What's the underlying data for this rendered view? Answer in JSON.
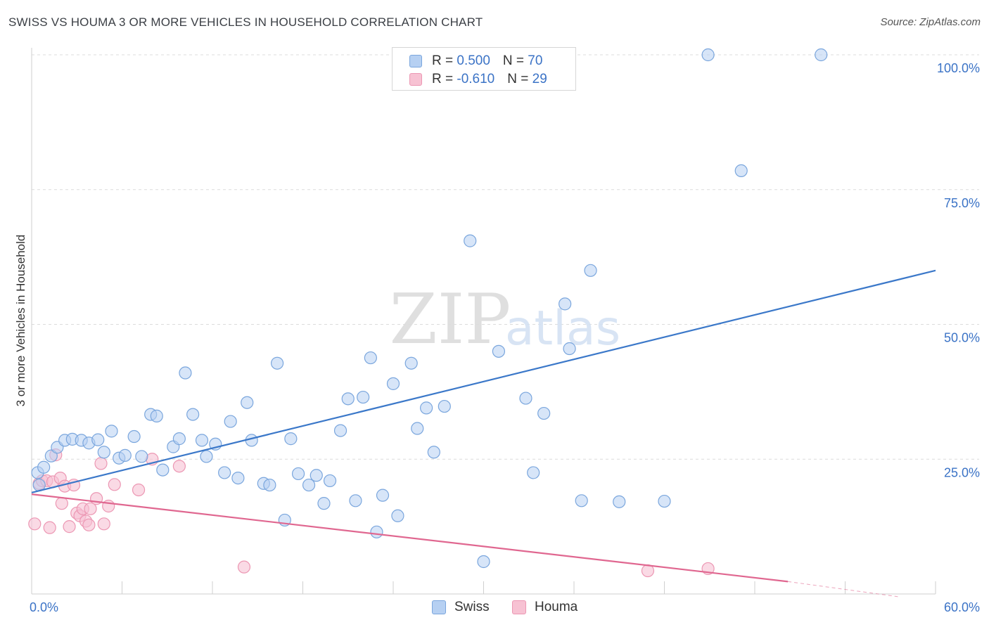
{
  "title": "SWISS VS HOUMA 3 OR MORE VEHICLES IN HOUSEHOLD CORRELATION CHART",
  "source": "Source: ZipAtlas.com",
  "watermark": {
    "zip": "ZIP",
    "atlas": "atlas"
  },
  "colors": {
    "swiss_fill": "#b6d0f2",
    "swiss_stroke": "#7aa6dd",
    "swiss_line": "#3b78c9",
    "houma_fill": "#f7c2d3",
    "houma_stroke": "#ec97b3",
    "houma_line": "#e06790",
    "axis_label": "#3b73c6",
    "grid": "#dcdcdc"
  },
  "legend": {
    "swiss": {
      "r_label": "R = ",
      "r_value": "0.500",
      "n_label": "N = ",
      "n_value": "70"
    },
    "houma": {
      "r_label": "R = ",
      "r_value": "-0.610",
      "n_label": "N = ",
      "n_value": "29"
    }
  },
  "bottom_legend": {
    "swiss": "Swiss",
    "houma": "Houma"
  },
  "chart_data": {
    "type": "scatter",
    "ylabel": "3 or more Vehicles in Household",
    "xlim": [
      0,
      60
    ],
    "ylim": [
      0,
      100
    ],
    "x_tick_labels": [
      "0.0%",
      "60.0%"
    ],
    "y_ticks": [
      {
        "value": 25,
        "label": "25.0%"
      },
      {
        "value": 50,
        "label": "50.0%"
      },
      {
        "value": 75,
        "label": "75.0%"
      },
      {
        "value": 100,
        "label": "100.0%"
      }
    ],
    "grid": true,
    "series": [
      {
        "name": "Swiss",
        "points": [
          [
            0.4,
            22.5
          ],
          [
            0.5,
            20.2
          ],
          [
            0.8,
            23.5
          ],
          [
            1.3,
            25.6
          ],
          [
            1.7,
            27.2
          ],
          [
            2.2,
            28.5
          ],
          [
            2.7,
            28.7
          ],
          [
            3.3,
            28.5
          ],
          [
            3.8,
            28.0
          ],
          [
            4.4,
            28.6
          ],
          [
            4.8,
            26.3
          ],
          [
            5.3,
            30.2
          ],
          [
            5.8,
            25.2
          ],
          [
            6.2,
            25.7
          ],
          [
            6.8,
            29.2
          ],
          [
            7.3,
            25.5
          ],
          [
            7.9,
            33.3
          ],
          [
            8.3,
            33.0
          ],
          [
            8.7,
            23.0
          ],
          [
            9.4,
            27.3
          ],
          [
            9.8,
            28.8
          ],
          [
            10.2,
            41.0
          ],
          [
            10.7,
            33.3
          ],
          [
            11.3,
            28.5
          ],
          [
            11.6,
            25.5
          ],
          [
            12.2,
            27.8
          ],
          [
            12.8,
            22.5
          ],
          [
            13.2,
            32.0
          ],
          [
            13.7,
            21.5
          ],
          [
            14.3,
            35.5
          ],
          [
            14.6,
            28.5
          ],
          [
            15.4,
            20.5
          ],
          [
            15.8,
            20.2
          ],
          [
            16.3,
            42.8
          ],
          [
            16.8,
            13.7
          ],
          [
            17.2,
            28.8
          ],
          [
            17.7,
            22.3
          ],
          [
            18.4,
            20.2
          ],
          [
            18.9,
            22.0
          ],
          [
            19.4,
            16.8
          ],
          [
            19.8,
            21.0
          ],
          [
            20.5,
            30.3
          ],
          [
            21.0,
            36.2
          ],
          [
            21.5,
            17.3
          ],
          [
            22.0,
            36.5
          ],
          [
            22.5,
            43.8
          ],
          [
            22.9,
            11.5
          ],
          [
            23.3,
            18.3
          ],
          [
            24.0,
            39.0
          ],
          [
            24.3,
            14.5
          ],
          [
            25.2,
            42.8
          ],
          [
            25.6,
            30.7
          ],
          [
            26.2,
            34.5
          ],
          [
            26.7,
            26.3
          ],
          [
            27.4,
            34.8
          ],
          [
            29.1,
            65.5
          ],
          [
            30.0,
            6.0
          ],
          [
            31.0,
            45.0
          ],
          [
            32.8,
            36.3
          ],
          [
            33.3,
            22.5
          ],
          [
            34.0,
            33.5
          ],
          [
            35.4,
            53.8
          ],
          [
            35.7,
            45.5
          ],
          [
            36.5,
            17.3
          ],
          [
            37.1,
            60.0
          ],
          [
            39.0,
            17.1
          ],
          [
            42.0,
            17.2
          ],
          [
            44.9,
            100.0
          ],
          [
            47.1,
            78.5
          ],
          [
            52.4,
            100.0
          ]
        ],
        "trend": [
          [
            0,
            18.8
          ],
          [
            60,
            60.0
          ]
        ]
      },
      {
        "name": "Houma",
        "points": [
          [
            0.2,
            13.0
          ],
          [
            0.5,
            20.5
          ],
          [
            0.7,
            21.0
          ],
          [
            1.0,
            21.0
          ],
          [
            1.2,
            12.3
          ],
          [
            1.4,
            20.8
          ],
          [
            1.6,
            25.8
          ],
          [
            1.9,
            21.5
          ],
          [
            2.0,
            16.8
          ],
          [
            2.2,
            20.0
          ],
          [
            2.5,
            12.5
          ],
          [
            2.8,
            20.2
          ],
          [
            3.0,
            15.0
          ],
          [
            3.2,
            14.5
          ],
          [
            3.4,
            15.8
          ],
          [
            3.6,
            13.5
          ],
          [
            3.8,
            12.8
          ],
          [
            3.9,
            15.8
          ],
          [
            4.3,
            17.7
          ],
          [
            4.6,
            24.2
          ],
          [
            4.8,
            13.0
          ],
          [
            5.1,
            16.3
          ],
          [
            5.5,
            20.3
          ],
          [
            7.1,
            19.3
          ],
          [
            8.0,
            25.0
          ],
          [
            9.8,
            23.7
          ],
          [
            14.1,
            5.0
          ],
          [
            40.9,
            4.3
          ],
          [
            44.9,
            4.7
          ]
        ],
        "trend": [
          [
            0,
            18.5
          ],
          [
            50.2,
            2.3
          ]
        ],
        "trend_dashed_extension": [
          [
            50.2,
            2.3
          ],
          [
            57.5,
            -0.5
          ]
        ]
      }
    ]
  }
}
